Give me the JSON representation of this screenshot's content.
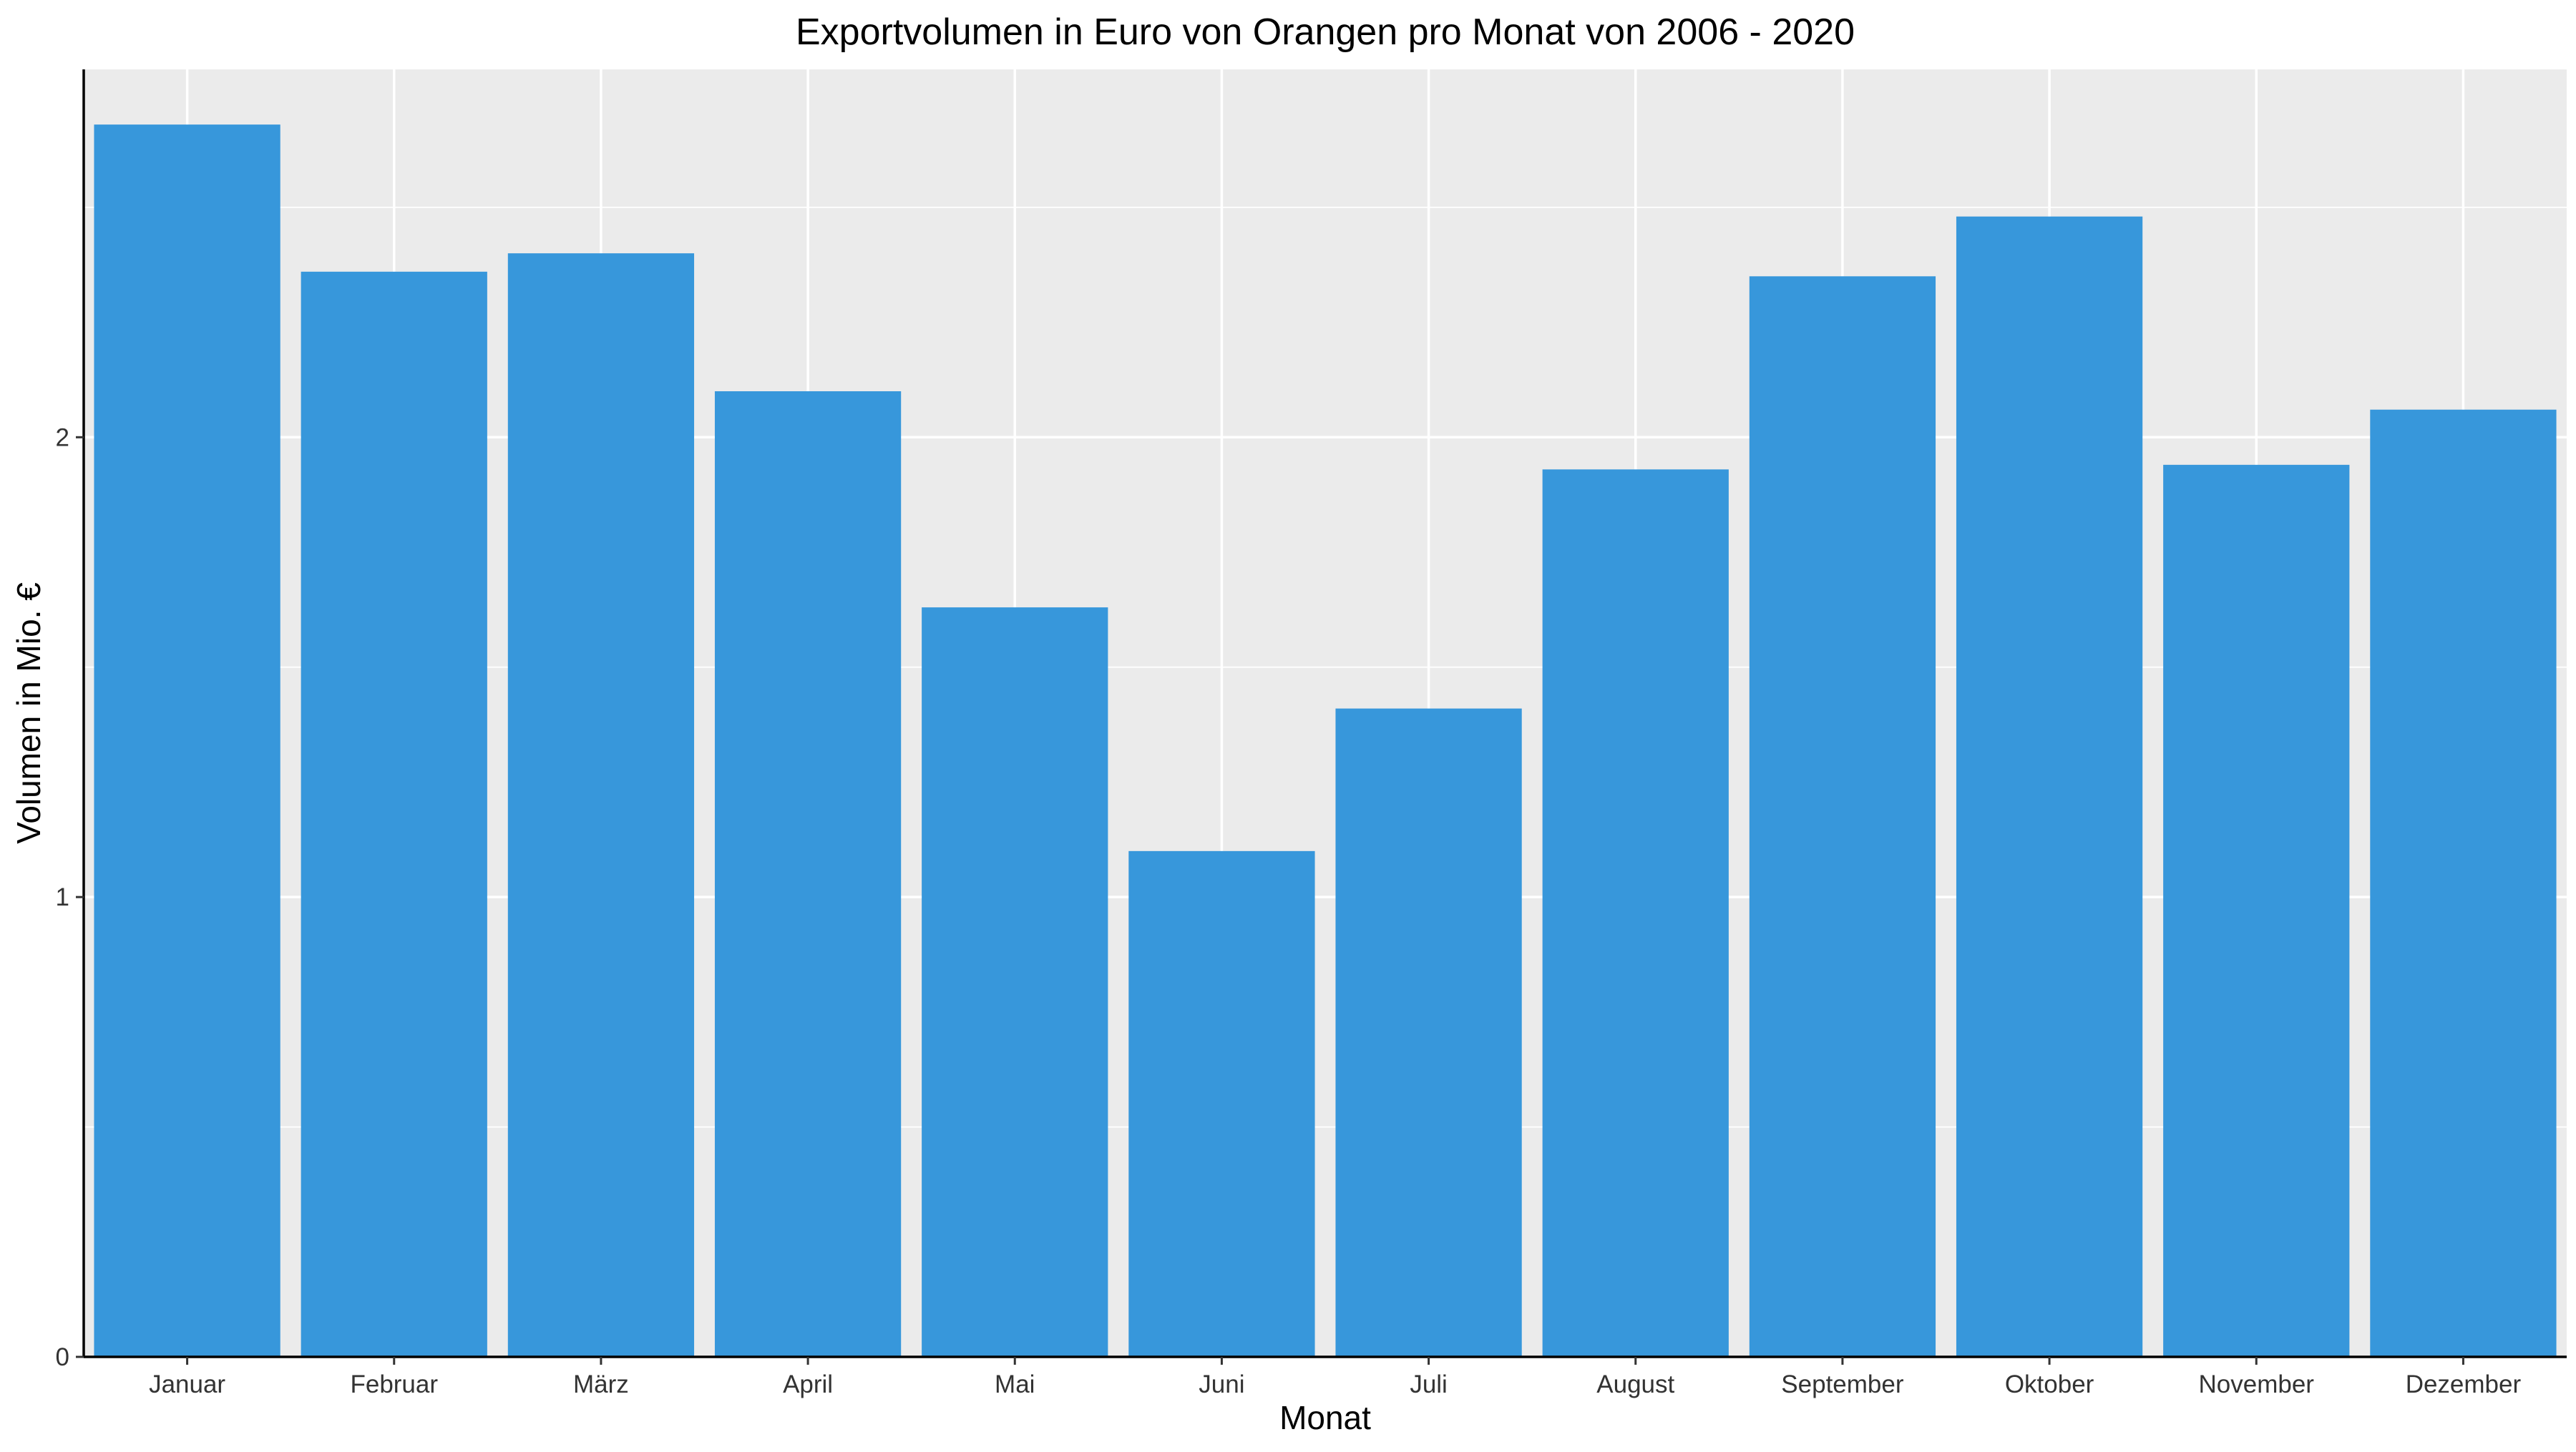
{
  "chart_data": {
    "type": "bar",
    "title": "Exportvolumen in Euro von Orangen pro Monat von 2006 - 2020",
    "xlabel": "Monat",
    "ylabel": "Volumen in Mio. €",
    "categories": [
      "Januar",
      "Februar",
      "März",
      "April",
      "Mai",
      "Juni",
      "Juli",
      "August",
      "September",
      "Oktober",
      "November",
      "Dezember"
    ],
    "values": [
      2.68,
      2.36,
      2.4,
      2.1,
      1.63,
      1.1,
      1.41,
      1.93,
      2.35,
      2.48,
      1.94,
      2.06
    ],
    "ylim": [
      0,
      2.8
    ],
    "yticks": [
      0,
      1,
      2
    ],
    "grid": true,
    "legend": "none",
    "colors": {
      "bar": "#3797db",
      "panel_background": "#ebebeb",
      "gridline": "#ffffff"
    }
  }
}
